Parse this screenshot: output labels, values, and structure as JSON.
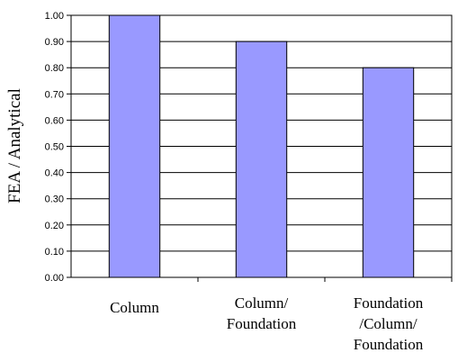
{
  "chart_data": {
    "type": "bar",
    "categories": [
      [
        "Column"
      ],
      [
        "Column/",
        "Foundation"
      ],
      [
        "Foundation",
        "/Column/",
        "Foundation"
      ]
    ],
    "values": [
      1.0,
      0.9,
      0.8
    ],
    "ylabel": "FEA / Analytical",
    "xlabel": "",
    "ylim": [
      0.0,
      1.0
    ],
    "yticks": [
      "0.00",
      "0.10",
      "0.20",
      "0.30",
      "0.40",
      "0.50",
      "0.60",
      "0.70",
      "0.80",
      "0.90",
      "1.00"
    ],
    "grid": true,
    "bar_color": "#9999FF",
    "bar_edge_color": "#000000"
  }
}
